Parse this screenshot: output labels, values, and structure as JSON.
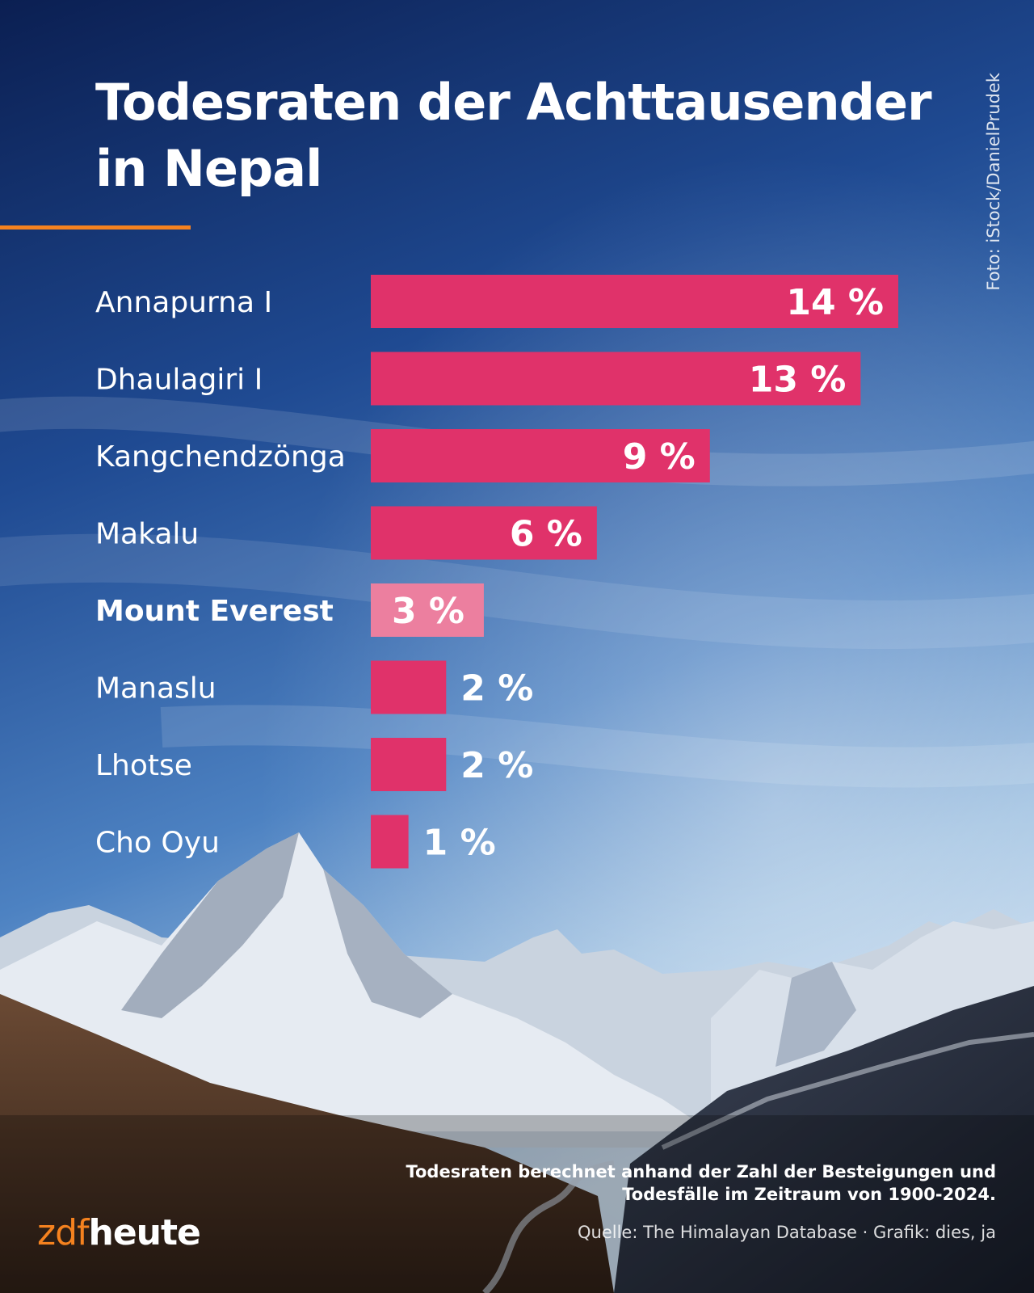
{
  "title_lines": [
    "Todesraten der Achttausender",
    "in Nepal"
  ],
  "photo_credit": "Foto: iStock/DanielPrudek",
  "colors": {
    "bar": "#e0326a",
    "bar_highlight": "#ec7f9f",
    "accent_line": "#f5821f",
    "sky_top": "#0d2660",
    "sky_mid": "#2d63a8"
  },
  "chart_data": {
    "type": "bar",
    "orientation": "horizontal",
    "title": "Todesraten der Achttausender in Nepal",
    "categories": [
      "Annapurna I",
      "Dhaulagiri I",
      "Kangchendzönga",
      "Makalu",
      "Mount Everest",
      "Manaslu",
      "Lhotse",
      "Cho Oyu"
    ],
    "values": [
      14,
      13,
      9,
      6,
      3,
      2,
      2,
      1
    ],
    "value_labels": [
      "14 %",
      "13 %",
      "9 %",
      "6 %",
      "3 %",
      "2 %",
      "2 %",
      "1 %"
    ],
    "highlight": "Mount Everest",
    "unit": "%",
    "xlim": [
      0,
      14
    ],
    "grid": false,
    "legend": "none"
  },
  "footnote_lines": [
    "Todesraten berechnet anhand der Zahl der Besteigungen und",
    "Todesfälle im Zeitraum von 1900-2024."
  ],
  "source": "Quelle: The Himalayan Database · Grafik: dies, ja",
  "logo": {
    "part1": "zdf",
    "part2": "heute"
  }
}
